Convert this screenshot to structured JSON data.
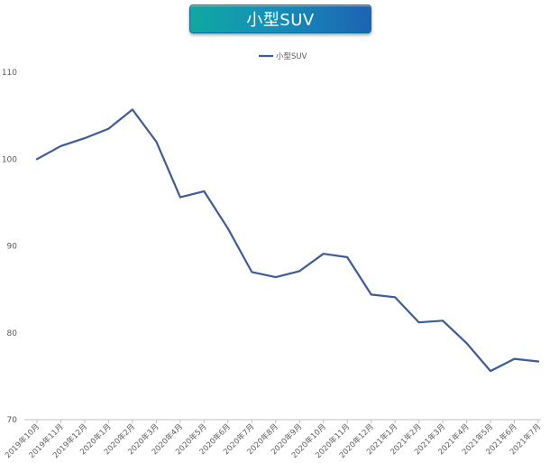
{
  "title_banner": "小型SUV",
  "chart_data": {
    "type": "line",
    "title": "小型SUV",
    "legend_position": "top-center",
    "grid": false,
    "ylim": [
      70,
      110
    ],
    "yticks": [
      70,
      80,
      90,
      100,
      110
    ],
    "categories": [
      "2019年10月",
      "2019年11月",
      "2019年12月",
      "2020年1月",
      "2020年2月",
      "2020年3月",
      "2020年4月",
      "2020年5月",
      "2020年6月",
      "2020年7月",
      "2020年8月",
      "2020年9月",
      "2020年10月",
      "2020年11月",
      "2020年12月",
      "2021年1月",
      "2021年2月",
      "2021年3月",
      "2021年4月",
      "2021年5月",
      "2021年6月",
      "2021年7月"
    ],
    "series": [
      {
        "name": "小型SUV",
        "color": "#3d5a99",
        "values": [
          100,
          101.5,
          102.4,
          103.5,
          105.7,
          102.0,
          95.6,
          96.3,
          92.0,
          87.0,
          86.4,
          87.1,
          89.1,
          88.7,
          84.4,
          84.1,
          81.2,
          81.4,
          78.8,
          75.6,
          77.0,
          76.7
        ]
      }
    ]
  }
}
